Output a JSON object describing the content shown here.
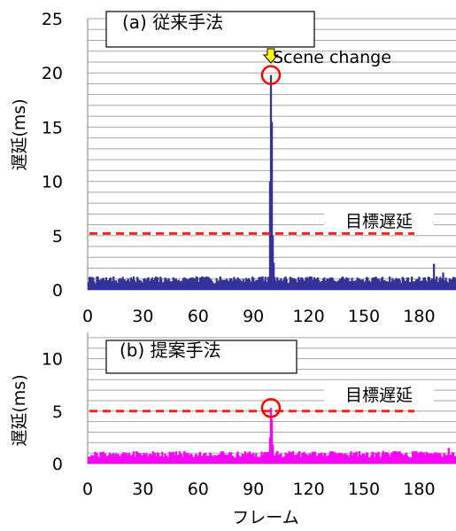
{
  "chart_data": [
    {
      "type": "bar",
      "title": "(a) 従来手法",
      "ylabel": "遅延(ms)",
      "ylim": [
        0,
        25
      ],
      "yticks": [
        "0",
        "5",
        "10",
        "15",
        "20",
        "25"
      ],
      "xlim": [
        0,
        200
      ],
      "xticks": [
        "0",
        "30",
        "60",
        "90",
        "120",
        "150",
        "180"
      ],
      "grid": true,
      "series": [
        {
          "color": "#333399",
          "baseline": 0.9,
          "noise": 0.35,
          "peaks": [
            {
              "x": 99,
              "y": 10
            },
            {
              "x": 99.5,
              "y": 19.8
            },
            {
              "x": 100,
              "y": 15.5
            },
            {
              "x": 100.5,
              "y": 5
            },
            {
              "x": 101,
              "y": 2.5
            },
            {
              "x": 188,
              "y": 2.4
            },
            {
              "x": 193,
              "y": 1.6
            }
          ]
        }
      ],
      "target": {
        "value": 5.2,
        "label": "目標遅延",
        "color": "#e8281e"
      },
      "annotation": {
        "label": "Scene change",
        "x": 99.5,
        "y": 19.8
      }
    },
    {
      "type": "bar",
      "title": "(b) 提案手法",
      "ylabel": "遅延(ms)",
      "ylim": [
        0,
        12.5
      ],
      "yticks": [
        "0",
        "5",
        "10"
      ],
      "xlim": [
        0,
        200
      ],
      "xticks": [
        "0",
        "30",
        "60",
        "90",
        "120",
        "150",
        "180"
      ],
      "xlabel": "フレーム",
      "grid": true,
      "series": [
        {
          "color": "#ff00ff",
          "baseline": 0.85,
          "noise": 0.35,
          "peaks": [
            {
              "x": 99,
              "y": 2.5
            },
            {
              "x": 99.5,
              "y": 5.3
            },
            {
              "x": 100,
              "y": 4.2
            },
            {
              "x": 100.5,
              "y": 1.8
            },
            {
              "x": 196,
              "y": 1.5
            }
          ]
        }
      ],
      "target": {
        "value": 5.0,
        "label": "目標遅延",
        "color": "#e8281e"
      },
      "annotation": {
        "x": 99.5,
        "y": 5.3
      }
    }
  ]
}
